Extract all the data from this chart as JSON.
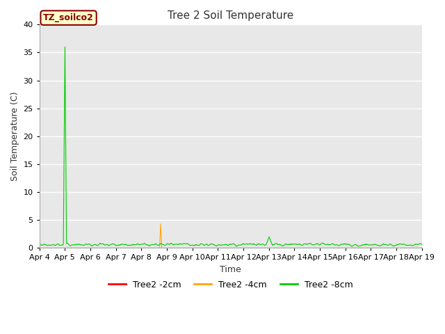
{
  "title": "Tree 2 Soil Temperature",
  "xlabel": "Time",
  "ylabel": "Soil Temperature (C)",
  "ylim": [
    0,
    40
  ],
  "yticks": [
    0,
    5,
    10,
    15,
    20,
    25,
    30,
    35,
    40
  ],
  "x_tick_labels": [
    "Apr 4",
    "Apr 5",
    "Apr 6",
    "Apr 7",
    "Apr 8",
    "Apr 9",
    "Apr 10",
    "Apr 11",
    "Apr 12",
    "Apr 13",
    "Apr 14",
    "Apr 15",
    "Apr 16",
    "Apr 17",
    "Apr 18",
    "Apr 19"
  ],
  "annotation_text": "TZ_soilco2",
  "annotation_bg": "#ffffcc",
  "annotation_border": "#8b0000",
  "annotation_text_color": "#8b0000",
  "line_2cm_color": "#ff0000",
  "line_4cm_color": "#ffa500",
  "line_8cm_color": "#00cc00",
  "legend_labels": [
    "Tree2 -2cm",
    "Tree2 -4cm",
    "Tree2 -8cm"
  ],
  "bg_color": "#e8e8e8",
  "title_fontsize": 11,
  "axis_fontsize": 9,
  "tick_fontsize": 8
}
